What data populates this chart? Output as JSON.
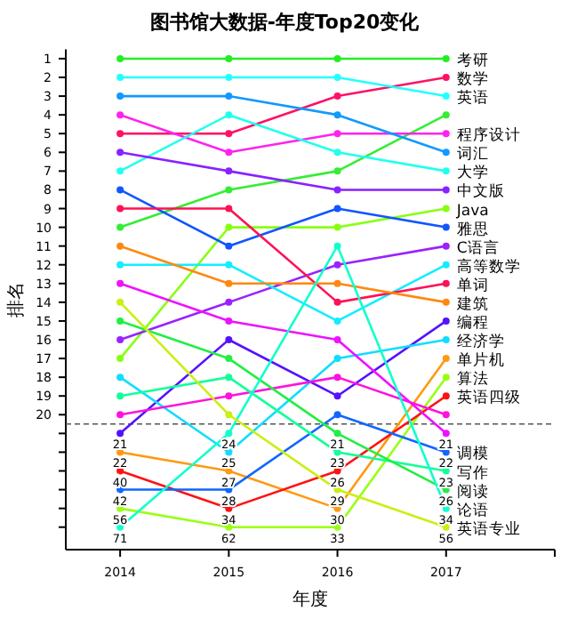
{
  "chart_data": {
    "type": "line",
    "title": "图书馆大数据-年度Top20变化",
    "xlabel": "年度",
    "ylabel": "排名",
    "marker": "circle",
    "x": [
      2014,
      2015,
      2016,
      2017
    ],
    "xlim": [
      2013.5,
      2018
    ],
    "xticks": [
      2014,
      2015,
      2016,
      2017,
      {
        "value": 2018,
        "label": null
      }
    ],
    "ylim": [
      27.2,
      0.5
    ],
    "yticks": [
      1,
      2,
      3,
      4,
      5,
      6,
      7,
      8,
      9,
      10,
      11,
      12,
      13,
      14,
      15,
      16,
      17,
      18,
      19,
      20,
      {
        "value": 21,
        "label": null
      },
      {
        "value": 22,
        "label": null
      },
      {
        "value": 23,
        "label": null
      },
      {
        "value": 24,
        "label": null
      },
      {
        "value": 25,
        "label": null
      },
      {
        "value": 26,
        "label": null
      }
    ],
    "ref_lines": [
      {
        "axis": "y",
        "value": 20.5,
        "color": "#555555",
        "line_style": "dashed"
      }
    ],
    "series": [
      {
        "name": "考研",
        "color": "#22ee22",
        "values": [
          1,
          1,
          1,
          1
        ]
      },
      {
        "name": "数学",
        "color": "#ff1166",
        "values": [
          5,
          5,
          3,
          2
        ]
      },
      {
        "name": "英语",
        "color": "#22ffff",
        "values": [
          2,
          2,
          2,
          3
        ]
      },
      {
        "color": "#33ee33",
        "values": [
          10,
          8,
          7,
          4
        ]
      },
      {
        "name": "程序设计",
        "color": "#ff22ee",
        "values": [
          4,
          6,
          5,
          5
        ]
      },
      {
        "name": "词汇",
        "color": "#1199ff",
        "values": [
          3,
          3,
          4,
          6
        ]
      },
      {
        "name": "大学",
        "color": "#22ffee",
        "values": [
          7,
          4,
          6,
          7
        ]
      },
      {
        "name": "中文版",
        "color": "#8822ff",
        "values": [
          6,
          7,
          8,
          8
        ]
      },
      {
        "name": "Java",
        "color": "#88ff11",
        "values": [
          17,
          10,
          10,
          9
        ]
      },
      {
        "name": "雅思",
        "color": "#1155ff",
        "values": [
          8,
          11,
          9,
          10
        ]
      },
      {
        "name": "C语言",
        "color": "#9922ff",
        "values": [
          16,
          14,
          12,
          11
        ]
      },
      {
        "name": "高等数学",
        "color": "#11eeff",
        "values": [
          12,
          12,
          15,
          12
        ]
      },
      {
        "name": "单词",
        "color": "#ff1155",
        "values": [
          9,
          9,
          14,
          13
        ]
      },
      {
        "name": "建筑",
        "color": "#ff8811",
        "values": [
          11,
          13,
          13,
          14
        ]
      },
      {
        "name": "编程",
        "color": "#5511ff",
        "values": [
          21,
          16,
          19,
          15
        ]
      },
      {
        "name": "经济学",
        "color": "#11ddff",
        "values": [
          18,
          22,
          17,
          16
        ]
      },
      {
        "name": "单片机",
        "color": "#ff9911",
        "values": [
          22,
          23,
          25,
          17
        ]
      },
      {
        "name": "算法",
        "color": "#99ff11",
        "values": [
          25,
          26,
          26,
          18
        ]
      },
      {
        "name": "英语四级",
        "color": "#ff1111",
        "values": [
          23,
          25,
          23,
          19
        ]
      },
      {
        "color": "#ff11dd",
        "values": [
          20,
          19,
          18,
          20
        ]
      },
      {
        "color": "#ee11ff",
        "values": [
          13,
          15,
          16,
          21
        ]
      },
      {
        "name": "调模",
        "color": "#1166ff",
        "values": [
          24,
          24,
          20,
          22
        ]
      },
      {
        "name": "写作",
        "color": "#11ff99",
        "values": [
          19,
          18,
          22,
          23
        ]
      },
      {
        "name": "阅读",
        "color": "#22ee44",
        "values": [
          15,
          17,
          21,
          24
        ]
      },
      {
        "name": "论语",
        "color": "#11ffcc",
        "values": [
          26,
          21,
          11,
          25
        ]
      },
      {
        "name": "英语专业",
        "color": "#ccee11",
        "values": [
          14,
          20,
          24,
          26
        ]
      }
    ],
    "annotations": [
      {
        "text": "21",
        "x": 2014,
        "y": 21
      },
      {
        "text": "22",
        "x": 2014,
        "y": 22
      },
      {
        "text": "40",
        "x": 2014,
        "y": 23
      },
      {
        "text": "42",
        "x": 2014,
        "y": 24
      },
      {
        "text": "56",
        "x": 2014,
        "y": 25
      },
      {
        "text": "71",
        "x": 2014,
        "y": 26
      },
      {
        "text": "24",
        "x": 2015,
        "y": 21
      },
      {
        "text": "25",
        "x": 2015,
        "y": 22
      },
      {
        "text": "27",
        "x": 2015,
        "y": 23
      },
      {
        "text": "28",
        "x": 2015,
        "y": 24
      },
      {
        "text": "34",
        "x": 2015,
        "y": 25
      },
      {
        "text": "62",
        "x": 2015,
        "y": 26
      },
      {
        "text": "21",
        "x": 2016,
        "y": 21
      },
      {
        "text": "23",
        "x": 2016,
        "y": 22
      },
      {
        "text": "26",
        "x": 2016,
        "y": 23
      },
      {
        "text": "29",
        "x": 2016,
        "y": 24
      },
      {
        "text": "30",
        "x": 2016,
        "y": 25
      },
      {
        "text": "33",
        "x": 2016,
        "y": 26
      },
      {
        "text": "21",
        "x": 2017,
        "y": 21
      },
      {
        "text": "22",
        "x": 2017,
        "y": 22
      },
      {
        "text": "23",
        "x": 2017,
        "y": 23
      },
      {
        "text": "26",
        "x": 2017,
        "y": 24
      },
      {
        "text": "34",
        "x": 2017,
        "y": 25
      },
      {
        "text": "56",
        "x": 2017,
        "y": 26
      }
    ]
  }
}
